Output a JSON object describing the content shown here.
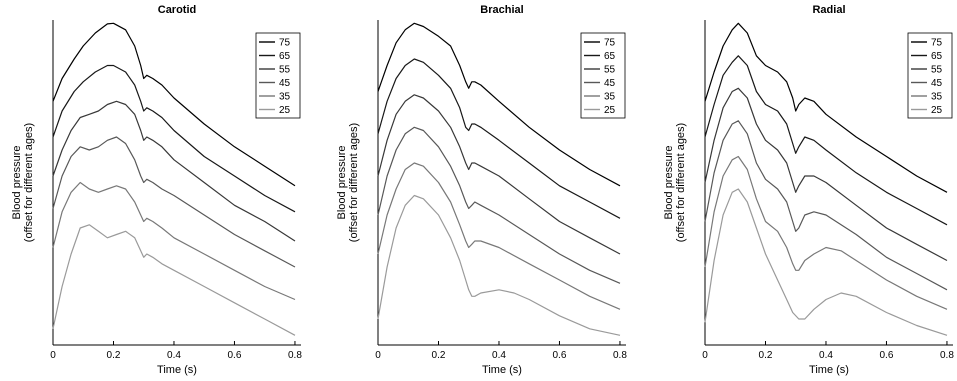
{
  "chart_data": [
    {
      "type": "line",
      "title": "Carotid",
      "xlabel": "Time (s)",
      "ylabel_line1": "Blood pressure",
      "ylabel_line2": "(offset for different ages)",
      "xlim": [
        0,
        0.82
      ],
      "ylim": [
        0,
        1
      ],
      "xticks": [
        "0",
        "0.2",
        "0.4",
        "0.6",
        "0.8"
      ],
      "legend_position": "top-right",
      "grid": false,
      "series": [
        {
          "name": "75",
          "color": "#000000",
          "x": [
            0,
            0.03,
            0.07,
            0.1,
            0.14,
            0.18,
            0.2,
            0.24,
            0.27,
            0.29,
            0.3,
            0.31,
            0.33,
            0.36,
            0.4,
            0.5,
            0.6,
            0.7,
            0.8
          ],
          "y": [
            0.75,
            0.82,
            0.88,
            0.92,
            0.96,
            0.988,
            0.99,
            0.97,
            0.92,
            0.86,
            0.82,
            0.83,
            0.82,
            0.8,
            0.76,
            0.68,
            0.61,
            0.55,
            0.49
          ]
        },
        {
          "name": "65",
          "color": "#181818",
          "x": [
            0,
            0.03,
            0.07,
            0.1,
            0.14,
            0.18,
            0.2,
            0.24,
            0.27,
            0.29,
            0.3,
            0.31,
            0.33,
            0.36,
            0.4,
            0.5,
            0.6,
            0.7,
            0.8
          ],
          "y": [
            0.64,
            0.72,
            0.78,
            0.81,
            0.84,
            0.86,
            0.86,
            0.84,
            0.8,
            0.75,
            0.72,
            0.73,
            0.72,
            0.7,
            0.66,
            0.58,
            0.52,
            0.46,
            0.41
          ]
        },
        {
          "name": "55",
          "color": "#383838",
          "x": [
            0,
            0.03,
            0.06,
            0.09,
            0.12,
            0.15,
            0.18,
            0.21,
            0.24,
            0.27,
            0.29,
            0.3,
            0.31,
            0.33,
            0.36,
            0.4,
            0.5,
            0.6,
            0.7,
            0.8
          ],
          "y": [
            0.52,
            0.6,
            0.66,
            0.7,
            0.71,
            0.72,
            0.74,
            0.75,
            0.74,
            0.71,
            0.66,
            0.63,
            0.64,
            0.63,
            0.61,
            0.57,
            0.5,
            0.43,
            0.38,
            0.32
          ]
        },
        {
          "name": "45",
          "color": "#585858",
          "x": [
            0,
            0.03,
            0.06,
            0.09,
            0.12,
            0.15,
            0.18,
            0.21,
            0.24,
            0.27,
            0.29,
            0.3,
            0.31,
            0.33,
            0.36,
            0.4,
            0.5,
            0.6,
            0.7,
            0.8
          ],
          "y": [
            0.42,
            0.52,
            0.58,
            0.61,
            0.6,
            0.61,
            0.63,
            0.64,
            0.62,
            0.57,
            0.52,
            0.5,
            0.51,
            0.5,
            0.48,
            0.46,
            0.4,
            0.34,
            0.29,
            0.24
          ]
        },
        {
          "name": "35",
          "color": "#787878",
          "x": [
            0,
            0.03,
            0.06,
            0.09,
            0.12,
            0.15,
            0.18,
            0.21,
            0.24,
            0.27,
            0.29,
            0.3,
            0.31,
            0.33,
            0.36,
            0.4,
            0.5,
            0.6,
            0.7,
            0.8
          ],
          "y": [
            0.3,
            0.41,
            0.47,
            0.5,
            0.48,
            0.47,
            0.48,
            0.49,
            0.48,
            0.44,
            0.4,
            0.38,
            0.39,
            0.38,
            0.36,
            0.33,
            0.28,
            0.23,
            0.18,
            0.14
          ]
        },
        {
          "name": "25",
          "color": "#9a9a9a",
          "x": [
            0,
            0.03,
            0.06,
            0.09,
            0.12,
            0.15,
            0.18,
            0.21,
            0.24,
            0.27,
            0.29,
            0.3,
            0.31,
            0.33,
            0.36,
            0.4,
            0.5,
            0.6,
            0.7,
            0.8
          ],
          "y": [
            0.05,
            0.18,
            0.28,
            0.36,
            0.37,
            0.35,
            0.33,
            0.34,
            0.35,
            0.33,
            0.29,
            0.27,
            0.28,
            0.27,
            0.25,
            0.23,
            0.18,
            0.13,
            0.08,
            0.03
          ]
        }
      ]
    },
    {
      "type": "line",
      "title": "Brachial",
      "xlabel": "Time (s)",
      "ylabel_line1": "Blood pressure",
      "ylabel_line2": "(offset for different ages)",
      "xlim": [
        0,
        0.82
      ],
      "ylim": [
        0,
        1
      ],
      "xticks": [
        "0",
        "0.2",
        "0.4",
        "0.6",
        "0.8"
      ],
      "legend_position": "top-right",
      "grid": false,
      "series": [
        {
          "name": "75",
          "color": "#000000",
          "x": [
            0,
            0.03,
            0.06,
            0.09,
            0.12,
            0.15,
            0.2,
            0.24,
            0.27,
            0.29,
            0.3,
            0.31,
            0.32,
            0.34,
            0.4,
            0.5,
            0.6,
            0.7,
            0.8
          ],
          "y": [
            0.78,
            0.86,
            0.93,
            0.97,
            0.99,
            0.98,
            0.95,
            0.92,
            0.86,
            0.81,
            0.79,
            0.81,
            0.81,
            0.8,
            0.75,
            0.67,
            0.6,
            0.54,
            0.49
          ]
        },
        {
          "name": "65",
          "color": "#181818",
          "x": [
            0,
            0.03,
            0.06,
            0.09,
            0.12,
            0.15,
            0.2,
            0.24,
            0.27,
            0.29,
            0.3,
            0.31,
            0.32,
            0.34,
            0.4,
            0.5,
            0.6,
            0.7,
            0.8
          ],
          "y": [
            0.65,
            0.75,
            0.82,
            0.86,
            0.88,
            0.87,
            0.83,
            0.79,
            0.73,
            0.67,
            0.66,
            0.68,
            0.68,
            0.67,
            0.63,
            0.56,
            0.49,
            0.44,
            0.39
          ]
        },
        {
          "name": "55",
          "color": "#383838",
          "x": [
            0,
            0.03,
            0.06,
            0.09,
            0.12,
            0.15,
            0.2,
            0.24,
            0.27,
            0.29,
            0.3,
            0.31,
            0.32,
            0.34,
            0.4,
            0.5,
            0.6,
            0.7,
            0.8
          ],
          "y": [
            0.52,
            0.63,
            0.71,
            0.75,
            0.77,
            0.76,
            0.72,
            0.67,
            0.61,
            0.56,
            0.54,
            0.56,
            0.56,
            0.55,
            0.52,
            0.45,
            0.38,
            0.33,
            0.28
          ]
        },
        {
          "name": "45",
          "color": "#585858",
          "x": [
            0,
            0.03,
            0.06,
            0.09,
            0.12,
            0.15,
            0.2,
            0.24,
            0.27,
            0.29,
            0.3,
            0.31,
            0.32,
            0.34,
            0.4,
            0.5,
            0.6,
            0.7,
            0.8
          ],
          "y": [
            0.4,
            0.52,
            0.6,
            0.65,
            0.67,
            0.66,
            0.61,
            0.55,
            0.49,
            0.44,
            0.42,
            0.43,
            0.44,
            0.43,
            0.4,
            0.34,
            0.28,
            0.23,
            0.19
          ]
        },
        {
          "name": "35",
          "color": "#787878",
          "x": [
            0,
            0.03,
            0.06,
            0.09,
            0.12,
            0.15,
            0.2,
            0.24,
            0.27,
            0.29,
            0.3,
            0.31,
            0.32,
            0.34,
            0.4,
            0.5,
            0.6,
            0.7,
            0.8
          ],
          "y": [
            0.28,
            0.4,
            0.48,
            0.54,
            0.56,
            0.55,
            0.5,
            0.44,
            0.37,
            0.32,
            0.3,
            0.31,
            0.32,
            0.32,
            0.3,
            0.25,
            0.2,
            0.15,
            0.11
          ]
        },
        {
          "name": "25",
          "color": "#9a9a9a",
          "x": [
            0,
            0.03,
            0.06,
            0.09,
            0.12,
            0.15,
            0.2,
            0.24,
            0.27,
            0.29,
            0.3,
            0.31,
            0.32,
            0.34,
            0.4,
            0.45,
            0.5,
            0.6,
            0.7,
            0.8
          ],
          "y": [
            0.08,
            0.24,
            0.36,
            0.43,
            0.46,
            0.45,
            0.4,
            0.33,
            0.26,
            0.2,
            0.17,
            0.15,
            0.15,
            0.16,
            0.17,
            0.16,
            0.14,
            0.09,
            0.05,
            0.03
          ]
        }
      ]
    },
    {
      "type": "line",
      "title": "Radial",
      "xlabel": "Time (s)",
      "ylabel_line1": "Blood pressure",
      "ylabel_line2": "(offset for different ages)",
      "xlim": [
        0,
        0.82
      ],
      "ylim": [
        0,
        1
      ],
      "xticks": [
        "0",
        "0.2",
        "0.4",
        "0.6",
        "0.8"
      ],
      "legend_position": "top-right",
      "grid": false,
      "series": [
        {
          "name": "75",
          "color": "#000000",
          "x": [
            0,
            0.03,
            0.06,
            0.09,
            0.11,
            0.14,
            0.17,
            0.2,
            0.24,
            0.27,
            0.29,
            0.3,
            0.31,
            0.33,
            0.36,
            0.4,
            0.5,
            0.6,
            0.7,
            0.8
          ],
          "y": [
            0.75,
            0.84,
            0.92,
            0.97,
            0.99,
            0.96,
            0.89,
            0.86,
            0.84,
            0.81,
            0.76,
            0.72,
            0.74,
            0.76,
            0.75,
            0.71,
            0.64,
            0.58,
            0.52,
            0.47
          ]
        },
        {
          "name": "65",
          "color": "#181818",
          "x": [
            0,
            0.03,
            0.06,
            0.09,
            0.11,
            0.14,
            0.17,
            0.2,
            0.24,
            0.27,
            0.29,
            0.3,
            0.31,
            0.33,
            0.36,
            0.4,
            0.5,
            0.6,
            0.7,
            0.8
          ],
          "y": [
            0.64,
            0.74,
            0.83,
            0.87,
            0.89,
            0.86,
            0.78,
            0.74,
            0.72,
            0.68,
            0.62,
            0.59,
            0.61,
            0.64,
            0.63,
            0.6,
            0.53,
            0.47,
            0.42,
            0.37
          ]
        },
        {
          "name": "55",
          "color": "#383838",
          "x": [
            0,
            0.03,
            0.06,
            0.09,
            0.11,
            0.14,
            0.17,
            0.2,
            0.24,
            0.27,
            0.29,
            0.3,
            0.31,
            0.33,
            0.36,
            0.4,
            0.5,
            0.6,
            0.7,
            0.8
          ],
          "y": [
            0.5,
            0.63,
            0.73,
            0.78,
            0.79,
            0.76,
            0.68,
            0.63,
            0.6,
            0.56,
            0.5,
            0.47,
            0.49,
            0.52,
            0.52,
            0.5,
            0.43,
            0.36,
            0.31,
            0.26
          ]
        },
        {
          "name": "45",
          "color": "#585858",
          "x": [
            0,
            0.03,
            0.06,
            0.09,
            0.11,
            0.14,
            0.17,
            0.2,
            0.24,
            0.27,
            0.29,
            0.3,
            0.31,
            0.33,
            0.36,
            0.4,
            0.5,
            0.6,
            0.7,
            0.8
          ],
          "y": [
            0.38,
            0.53,
            0.63,
            0.68,
            0.69,
            0.65,
            0.56,
            0.51,
            0.48,
            0.44,
            0.38,
            0.35,
            0.36,
            0.4,
            0.41,
            0.4,
            0.34,
            0.27,
            0.22,
            0.17
          ]
        },
        {
          "name": "35",
          "color": "#787878",
          "x": [
            0,
            0.03,
            0.06,
            0.09,
            0.11,
            0.14,
            0.17,
            0.2,
            0.24,
            0.27,
            0.29,
            0.3,
            0.31,
            0.33,
            0.36,
            0.4,
            0.45,
            0.5,
            0.6,
            0.7,
            0.8
          ],
          "y": [
            0.24,
            0.41,
            0.52,
            0.57,
            0.58,
            0.54,
            0.45,
            0.38,
            0.35,
            0.3,
            0.25,
            0.23,
            0.23,
            0.26,
            0.28,
            0.3,
            0.29,
            0.26,
            0.2,
            0.15,
            0.11
          ]
        },
        {
          "name": "25",
          "color": "#9a9a9a",
          "x": [
            0,
            0.03,
            0.06,
            0.09,
            0.11,
            0.14,
            0.17,
            0.2,
            0.24,
            0.27,
            0.29,
            0.31,
            0.33,
            0.36,
            0.4,
            0.45,
            0.5,
            0.6,
            0.7,
            0.8
          ],
          "y": [
            0.07,
            0.26,
            0.4,
            0.47,
            0.48,
            0.44,
            0.36,
            0.28,
            0.2,
            0.14,
            0.1,
            0.08,
            0.08,
            0.11,
            0.14,
            0.16,
            0.15,
            0.1,
            0.06,
            0.03
          ]
        }
      ]
    }
  ]
}
